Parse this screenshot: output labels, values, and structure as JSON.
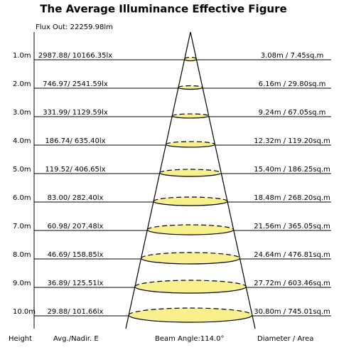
{
  "title": "The Average Illuminance Effective Figure",
  "flux": "Flux Out: 22259.98lm",
  "rows": [
    {
      "height": "1.0m",
      "illuminance": "2987.88/ 10166.35lx",
      "diameter": "3.08m / 7.45sq.m"
    },
    {
      "height": "2.0m",
      "illuminance": "746.97/ 2541.59lx",
      "diameter": "6.16m / 29.80sq.m"
    },
    {
      "height": "3.0m",
      "illuminance": "331.99/ 1129.59lx",
      "diameter": "9.24m / 67.05sq.m"
    },
    {
      "height": "4.0m",
      "illuminance": "186.74/ 635.40lx",
      "diameter": "12.32m / 119.20sq.m"
    },
    {
      "height": "5.0m",
      "illuminance": "119.52/ 406.65lx",
      "diameter": "15.40m / 186.25sq.m"
    },
    {
      "height": "6.0m",
      "illuminance": "83.00/ 282.40lx",
      "diameter": "18.48m / 268.20sq.m"
    },
    {
      "height": "7.0m",
      "illuminance": "60.98/ 207.48lx",
      "diameter": "21.56m / 365.05sq.m"
    },
    {
      "height": "8.0m",
      "illuminance": "46.69/ 158.85lx",
      "diameter": "24.64m / 476.81sq.m"
    },
    {
      "height": "9.0m",
      "illuminance": "36.89/ 125.51lx",
      "diameter": "27.72m / 603.46sq.m"
    },
    {
      "height": "10.0m",
      "illuminance": "29.88/ 101.66lx",
      "diameter": "30.80m / 745.01sq.m"
    }
  ],
  "footer": {
    "height": "Height",
    "illuminance": "Avg./Nadir. E",
    "beam": "Beam Angle:114.0°",
    "diameter": "Diameter / Area"
  }
}
